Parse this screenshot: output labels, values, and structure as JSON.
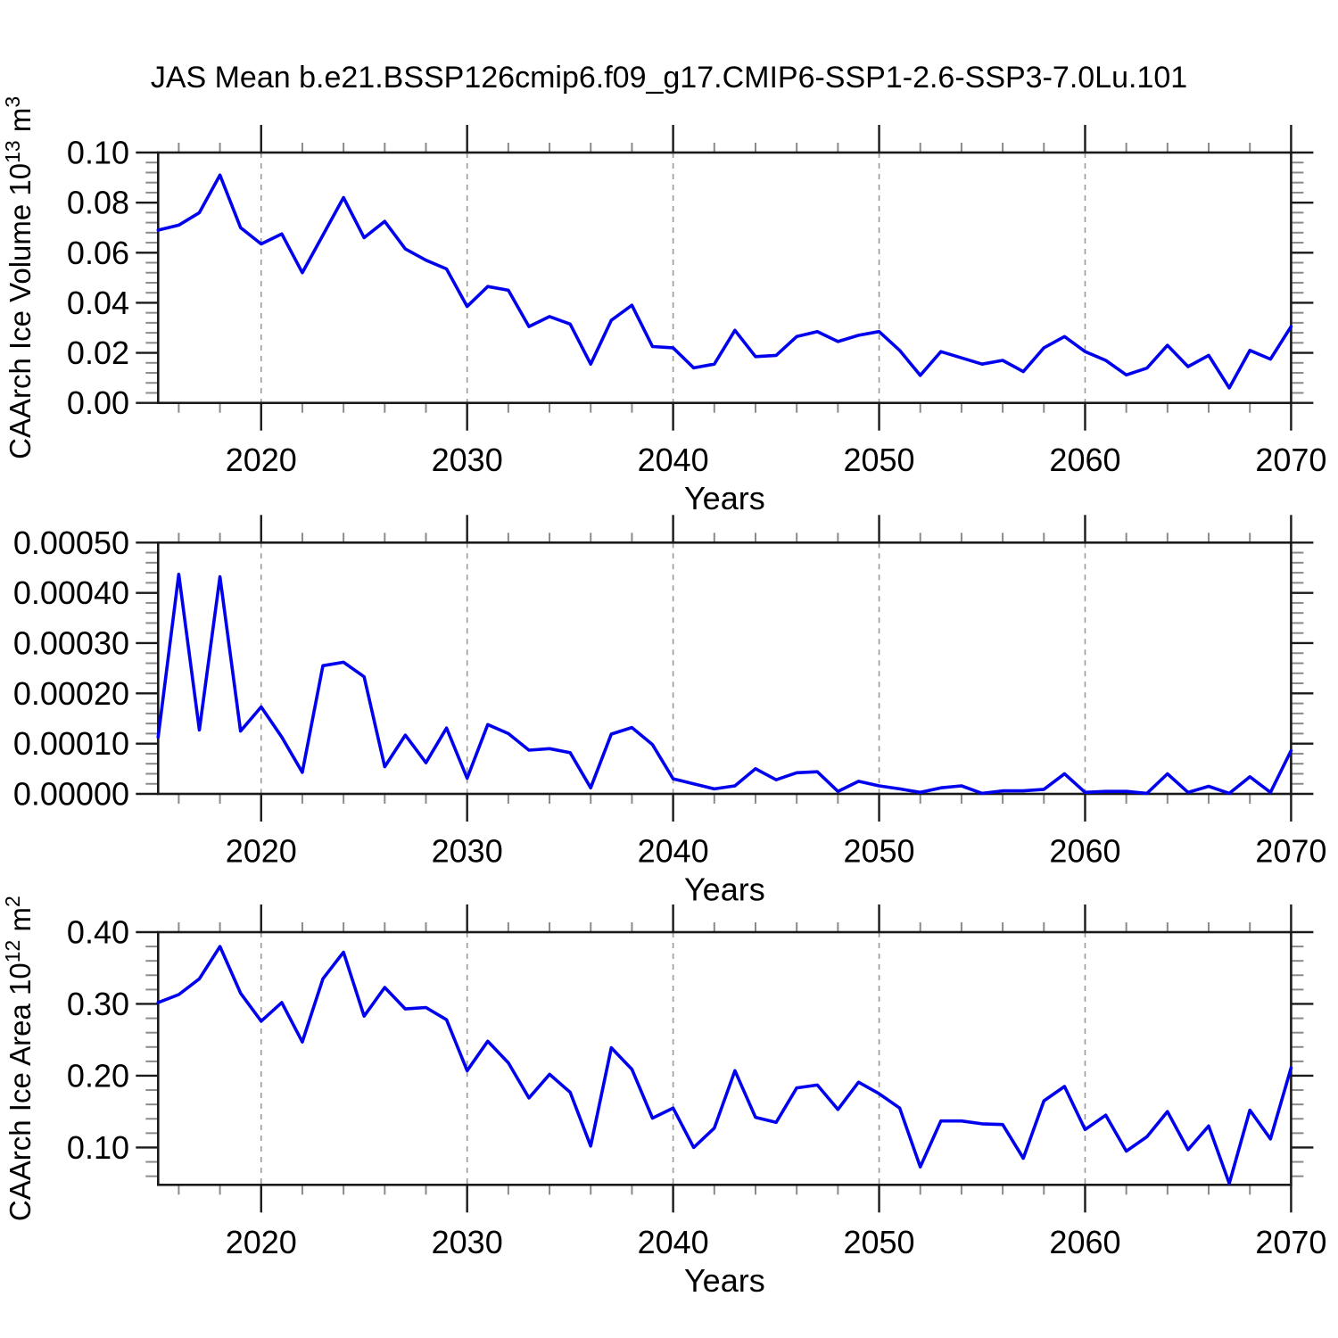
{
  "title": "JAS Mean b.e21.BSSP126cmip6.f09_g17.CMIP6-SSP1-2.6-SSP3-7.0Lu.101",
  "colors": {
    "line": "#0000ee",
    "frame": "#1a1a1a",
    "major_tick": "#1a1a1a",
    "minor_tick": "#8a8a8a",
    "grid": "#9a9a9a",
    "text": "#000000",
    "background": "#ffffff"
  },
  "x_axis": {
    "label": "Years",
    "min": 2015,
    "max": 2070,
    "major_ticks": [
      2020,
      2030,
      2040,
      2050,
      2060,
      2070
    ],
    "major_tick_labels": [
      "2020",
      "2030",
      "2040",
      "2050",
      "2060",
      "2070"
    ],
    "minor_step": 2,
    "gridline_years": [
      2020,
      2030,
      2040,
      2050,
      2060
    ],
    "years": [
      2015,
      2016,
      2017,
      2018,
      2019,
      2020,
      2021,
      2022,
      2023,
      2024,
      2025,
      2026,
      2027,
      2028,
      2029,
      2030,
      2031,
      2032,
      2033,
      2034,
      2035,
      2036,
      2037,
      2038,
      2039,
      2040,
      2041,
      2042,
      2043,
      2044,
      2045,
      2046,
      2047,
      2048,
      2049,
      2050,
      2051,
      2052,
      2053,
      2054,
      2055,
      2056,
      2057,
      2058,
      2059,
      2060,
      2061,
      2062,
      2063,
      2064,
      2065,
      2066,
      2067,
      2068,
      2069,
      2070
    ]
  },
  "chart_data": [
    {
      "type": "line",
      "title": "",
      "ylabel": "CAArch Ice Volume 10^13 m^3",
      "ylabel_parts": [
        {
          "text": "CAArch Ice Volume 10",
          "sup": false
        },
        {
          "text": "13",
          "sup": true
        },
        {
          "text": " m",
          "sup": false
        },
        {
          "text": "3",
          "sup": true
        }
      ],
      "xlabel": "Years",
      "ylim": [
        0.0,
        0.1
      ],
      "ytick_step": 0.02,
      "yminor_step": 0.004,
      "ytick_decimals": 2,
      "grid": "dashed-vertical",
      "legend": "none",
      "values": [
        0.069,
        0.071,
        0.076,
        0.091,
        0.07,
        0.0635,
        0.0675,
        0.052,
        0.067,
        0.082,
        0.066,
        0.0725,
        0.0615,
        0.057,
        0.0535,
        0.0385,
        0.0465,
        0.045,
        0.0305,
        0.0345,
        0.0315,
        0.0155,
        0.033,
        0.039,
        0.0225,
        0.022,
        0.014,
        0.0155,
        0.029,
        0.0185,
        0.019,
        0.0265,
        0.0285,
        0.0245,
        0.027,
        0.0285,
        0.021,
        0.011,
        0.0205,
        0.018,
        0.0155,
        0.017,
        0.0125,
        0.022,
        0.0265,
        0.0205,
        0.017,
        0.0112,
        0.0139,
        0.023,
        0.0145,
        0.019,
        0.006,
        0.021,
        0.0175,
        0.0305
      ]
    },
    {
      "type": "line",
      "title": "",
      "ylabel": "",
      "ylabel_parts": [],
      "xlabel": "Years",
      "ylim": [
        0.0,
        0.0005
      ],
      "ytick_step": 0.0001,
      "yminor_step": 2e-05,
      "ytick_decimals": 5,
      "grid": "dashed-vertical",
      "legend": "none",
      "values": [
        0.000113,
        0.000437,
        0.000127,
        0.000432,
        0.000125,
        0.000173,
        0.000113,
        4.3e-05,
        0.000255,
        0.000262,
        0.000233,
        5.4e-05,
        0.000117,
        6.2e-05,
        0.000131,
        3.1e-05,
        0.000138,
        0.00012,
        8.7e-05,
        9e-05,
        8.2e-05,
        1.2e-05,
        0.000119,
        0.000132,
        9.8e-05,
        3e-05,
        2e-05,
        1e-05,
        1.6e-05,
        5e-05,
        2.8e-05,
        4.2e-05,
        4.4e-05,
        5e-06,
        2.5e-05,
        1.6e-05,
        1e-05,
        3e-06,
        1.2e-05,
        1.6e-05,
        1e-06,
        6e-06,
        6e-06,
        9e-06,
        4e-05,
        3e-06,
        5e-06,
        5e-06,
        1e-06,
        4e-05,
        3e-06,
        1.5e-05,
        1e-06,
        3.4e-05,
        3e-06,
        8.6e-05
      ]
    },
    {
      "type": "line",
      "title": "",
      "ylabel": "CAArch Ice Area 10^12 m^2",
      "ylabel_parts": [
        {
          "text": "CAArch Ice Area 10",
          "sup": false
        },
        {
          "text": "12",
          "sup": true
        },
        {
          "text": " m",
          "sup": false
        },
        {
          "text": "2",
          "sup": true
        }
      ],
      "xlabel": "Years",
      "ylim": [
        0.048,
        0.4
      ],
      "ytick_step": 0.1,
      "yminor_step": 0.02,
      "ytick_decimals": 2,
      "grid": "dashed-vertical",
      "legend": "none",
      "values": [
        0.302,
        0.313,
        0.335,
        0.38,
        0.315,
        0.276,
        0.302,
        0.247,
        0.335,
        0.372,
        0.283,
        0.323,
        0.293,
        0.295,
        0.278,
        0.207,
        0.248,
        0.218,
        0.169,
        0.202,
        0.177,
        0.102,
        0.239,
        0.209,
        0.141,
        0.155,
        0.1,
        0.127,
        0.207,
        0.142,
        0.135,
        0.183,
        0.187,
        0.153,
        0.191,
        0.175,
        0.155,
        0.073,
        0.137,
        0.137,
        0.133,
        0.132,
        0.085,
        0.165,
        0.185,
        0.125,
        0.145,
        0.095,
        0.115,
        0.15,
        0.097,
        0.13,
        0.05,
        0.152,
        0.112,
        0.211
      ]
    }
  ]
}
